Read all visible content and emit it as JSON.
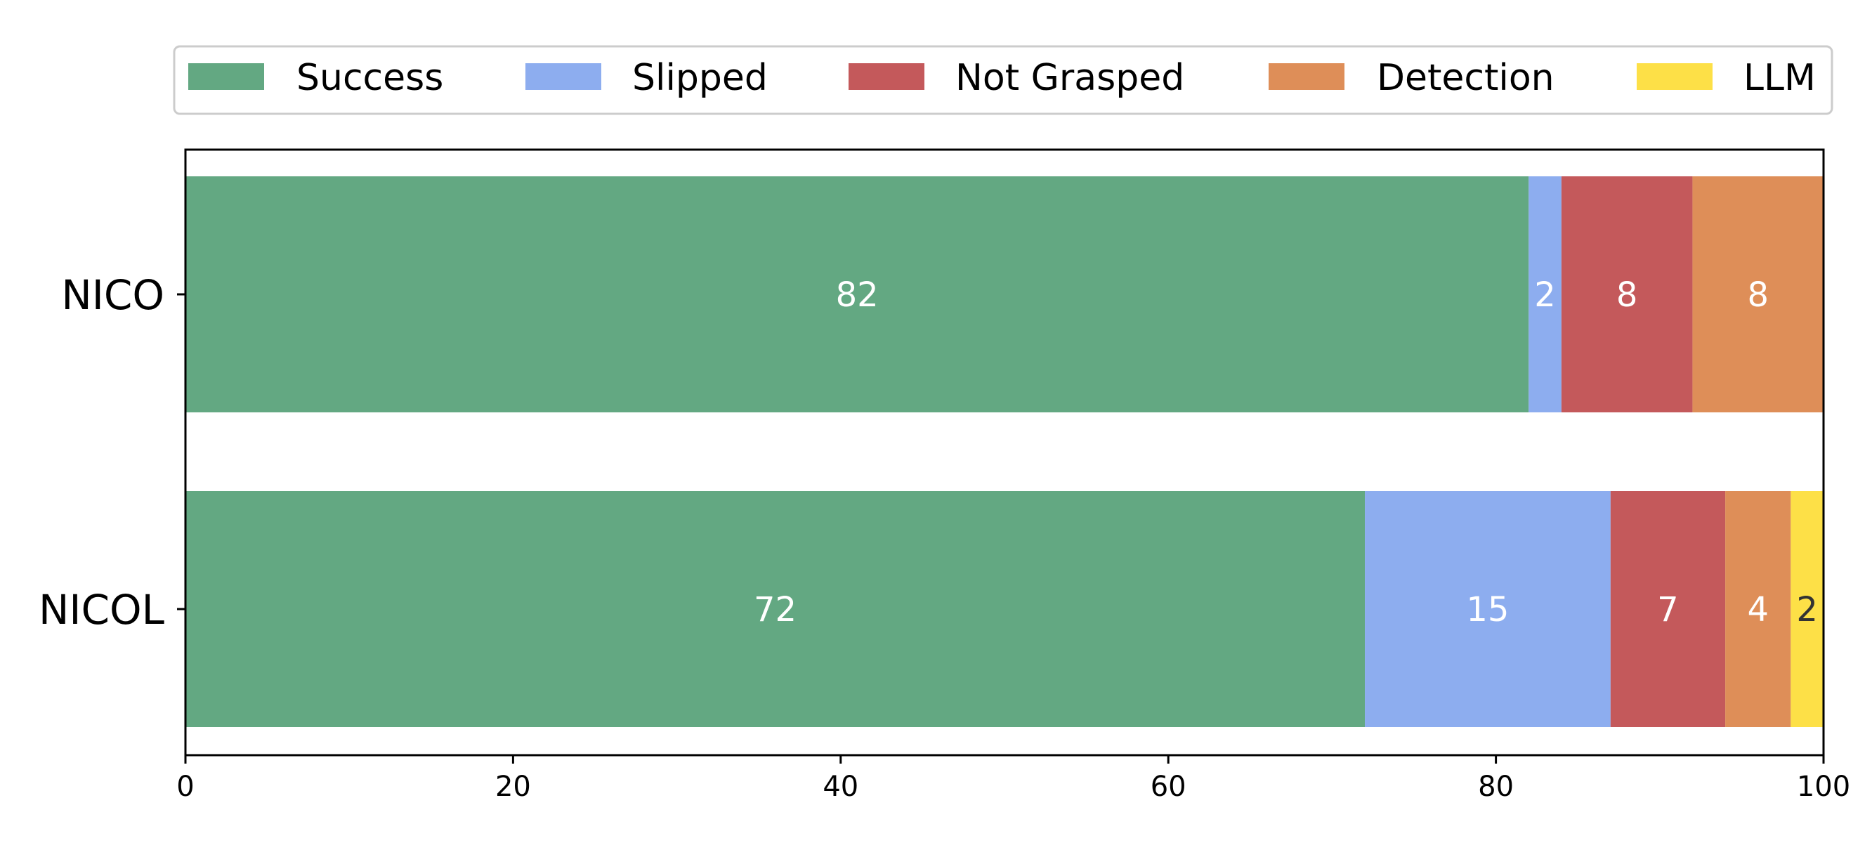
{
  "chart_data": {
    "type": "bar",
    "orientation": "horizontal",
    "stacked": true,
    "categories": [
      "NICO",
      "NICOL"
    ],
    "series": [
      {
        "name": "Success",
        "color": "#63a882",
        "values": [
          82,
          72
        ]
      },
      {
        "name": "Slipped",
        "color": "#8dadef",
        "values": [
          2,
          15
        ]
      },
      {
        "name": "Not Grasped",
        "color": "#c4595b",
        "values": [
          8,
          7
        ]
      },
      {
        "name": "Detection",
        "color": "#de8e58",
        "values": [
          8,
          4
        ]
      },
      {
        "name": "LLM",
        "color": "#fde047",
        "values": [
          0,
          2
        ]
      }
    ],
    "xlim": [
      0,
      100
    ],
    "xticks": [
      "0",
      "20",
      "40",
      "60",
      "80",
      "100"
    ],
    "title": "",
    "xlabel": "",
    "ylabel": "",
    "grid": false,
    "legend_position": "top",
    "bar_label_color": "#ffffff",
    "bar_label_color_light_bg": "#333333"
  }
}
